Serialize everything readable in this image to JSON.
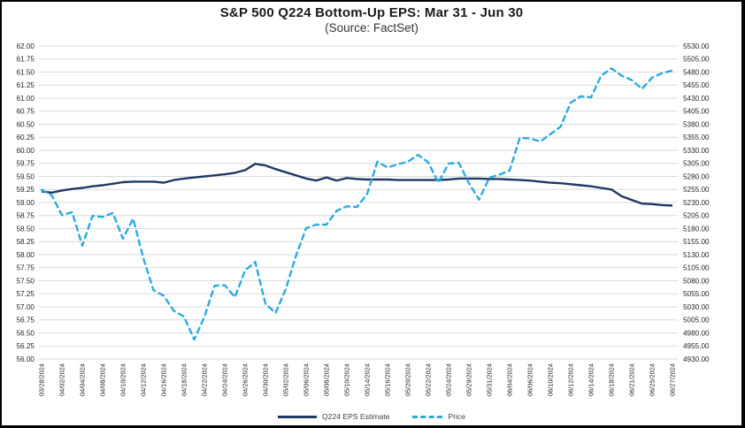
{
  "page": {
    "title": "S&P 500 Q224 Bottom-Up EPS: Mar 31 - Jun 30",
    "subtitle": "(Source: FactSet)"
  },
  "legend": {
    "eps_label": "Q224 EPS Estimate",
    "price_label": "Price"
  },
  "chart_data": {
    "type": "line",
    "title": "S&P 500 Q224 Bottom-Up EPS: Mar 31 - Jun 30",
    "subtitle": "(Source: FactSet)",
    "grid": true,
    "grid_color": "#d9d9d9",
    "legend_position": "bottom",
    "x_label_every": 2,
    "x": [
      "03/28/2024",
      "04/01/2024",
      "04/02/2024",
      "04/03/2024",
      "04/04/2024",
      "04/05/2024",
      "04/08/2024",
      "04/09/2024",
      "04/10/2024",
      "04/11/2024",
      "04/12/2024",
      "04/15/2024",
      "04/16/2024",
      "04/17/2024",
      "04/18/2024",
      "04/19/2024",
      "04/22/2024",
      "04/23/2024",
      "04/24/2024",
      "04/25/2024",
      "04/26/2024",
      "04/29/2024",
      "04/30/2024",
      "05/01/2024",
      "05/02/2024",
      "05/03/2024",
      "05/06/2024",
      "05/07/2024",
      "05/08/2024",
      "05/09/2024",
      "05/10/2024",
      "05/13/2024",
      "05/14/2024",
      "05/15/2024",
      "05/16/2024",
      "05/17/2024",
      "05/20/2024",
      "05/21/2024",
      "05/22/2024",
      "05/23/2024",
      "05/24/2024",
      "05/28/2024",
      "05/29/2024",
      "05/30/2024",
      "05/31/2024",
      "06/03/2024",
      "06/04/2024",
      "06/05/2024",
      "06/06/2024",
      "06/07/2024",
      "06/10/2024",
      "06/11/2024",
      "06/12/2024",
      "06/13/2024",
      "06/14/2024",
      "06/17/2024",
      "06/18/2024",
      "06/20/2024",
      "06/21/2024",
      "06/24/2024",
      "06/25/2024",
      "06/26/2024",
      "06/27/2024"
    ],
    "left_axis": {
      "min": 56.0,
      "max": 62.0,
      "step": 0.25,
      "decimals": 2
    },
    "right_axis": {
      "min": 4930.0,
      "max": 5530.0,
      "step": 25.0,
      "decimals": 2
    },
    "series": [
      {
        "name": "Q224 EPS Estimate",
        "axis": "left",
        "color": "#1f3864",
        "style": "solid",
        "values": [
          59.21,
          59.19,
          59.23,
          59.26,
          59.28,
          59.31,
          59.33,
          59.36,
          59.39,
          59.4,
          59.4,
          59.4,
          59.38,
          59.43,
          59.46,
          59.48,
          59.5,
          59.52,
          59.54,
          59.57,
          59.62,
          59.74,
          59.71,
          59.64,
          59.58,
          59.52,
          59.46,
          59.42,
          59.48,
          59.42,
          59.47,
          59.45,
          59.44,
          59.44,
          59.44,
          59.43,
          59.43,
          59.43,
          59.43,
          59.43,
          59.44,
          59.46,
          59.46,
          59.46,
          59.45,
          59.45,
          59.44,
          59.43,
          59.42,
          59.4,
          59.38,
          59.37,
          59.35,
          59.33,
          59.31,
          59.28,
          59.25,
          59.12,
          59.05,
          58.98,
          58.97,
          58.95,
          58.94
        ]
      },
      {
        "name": "Price",
        "axis": "right",
        "color": "#29abe2",
        "style": "dashed",
        "values": [
          5254.35,
          5243.77,
          5205.81,
          5211.49,
          5147.21,
          5204.34,
          5202.39,
          5209.91,
          5160.64,
          5199.06,
          5123.41,
          5061.82,
          5051.41,
          5022.21,
          5011.12,
          4967.23,
          5010.6,
          5070.55,
          5071.63,
          5048.42,
          5099.96,
          5116.17,
          5035.69,
          5018.39,
          5064.2,
          5127.79,
          5180.74,
          5187.7,
          5187.67,
          5214.08,
          5222.68,
          5221.42,
          5246.68,
          5308.15,
          5297.1,
          5303.27,
          5308.13,
          5321.41,
          5307.01,
          5267.84,
          5304.72,
          5306.04,
          5266.95,
          5235.48,
          5277.51,
          5283.4,
          5291.34,
          5354.03,
          5352.96,
          5346.99,
          5360.79,
          5375.32,
          5421.03,
          5433.74,
          5431.6,
          5473.23,
          5487.03,
          5473.17,
          5464.62,
          5447.87,
          5469.3,
          5477.9,
          5482.87
        ]
      }
    ]
  }
}
